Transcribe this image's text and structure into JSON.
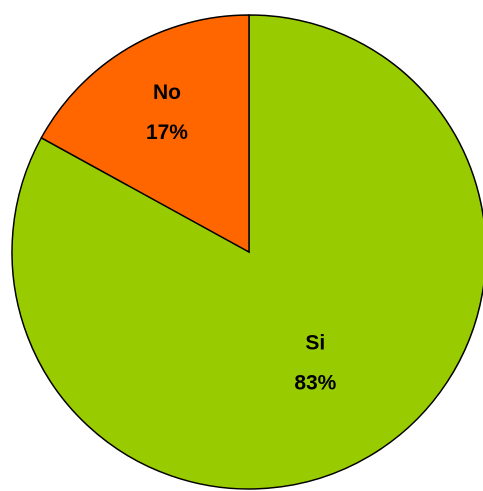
{
  "chart_data": {
    "type": "pie",
    "categories": [
      "Si",
      "No"
    ],
    "values": [
      83,
      17
    ],
    "value_labels": [
      "83%",
      "17%"
    ],
    "colors": [
      "#99cc00",
      "#ff6600"
    ]
  }
}
